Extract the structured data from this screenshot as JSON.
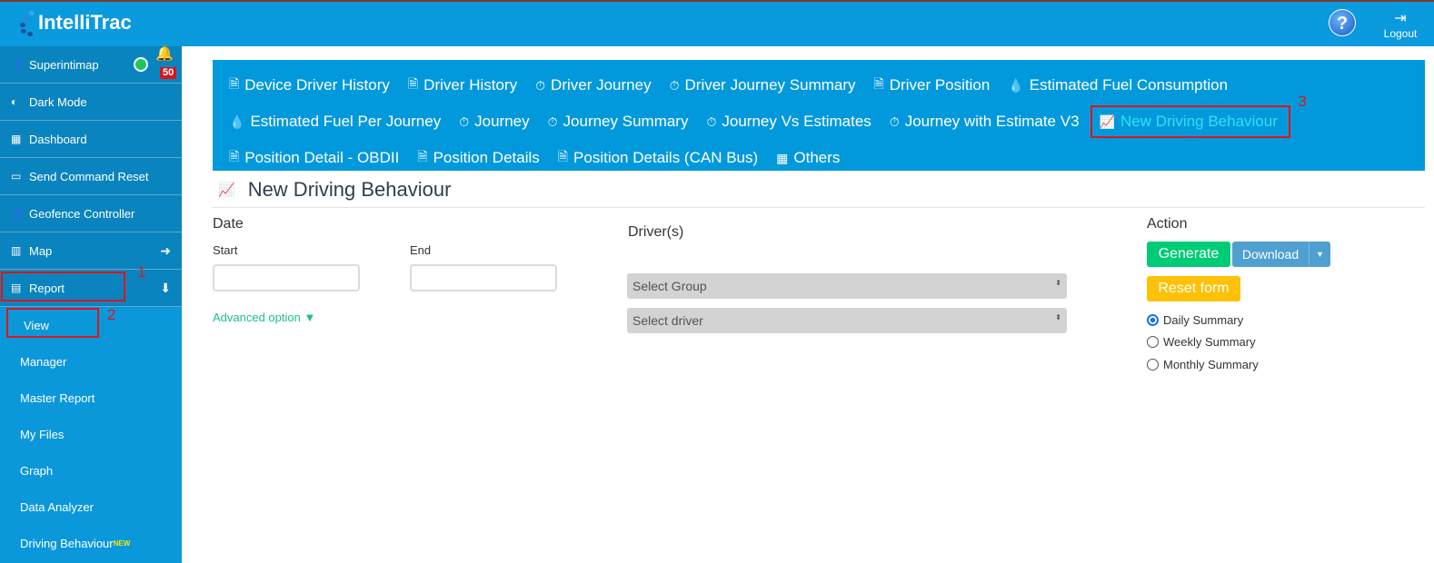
{
  "header": {
    "logo": "IntelliTrac",
    "help_icon": "?",
    "logout": "Logout"
  },
  "sidebar": {
    "user": "Superintimap",
    "notifications": "50",
    "items": [
      {
        "label": "Dark Mode"
      },
      {
        "label": "Dashboard"
      },
      {
        "label": "Send Command Reset"
      },
      {
        "label": "Geofence Controller"
      },
      {
        "label": "Map"
      },
      {
        "label": "Report"
      }
    ],
    "sub_items": [
      {
        "label": "View"
      },
      {
        "label": "Manager"
      },
      {
        "label": "Master Report"
      },
      {
        "label": "My Files"
      },
      {
        "label": "Graph"
      },
      {
        "label": "Data Analyzer"
      },
      {
        "label": "Driving Behaviour"
      }
    ],
    "new_badge": "NEW"
  },
  "report_nav": {
    "rows": [
      [
        "Device Driver History",
        "Driver History",
        "Driver Journey",
        "Driver Journey Summary",
        "Driver Position",
        "Estimated Fuel Consumption"
      ],
      [
        "Estimated Fuel Per Journey",
        "Journey",
        "Journey Summary",
        "Journey Vs Estimates",
        "Journey with Estimate V3",
        "New Driving Behaviour"
      ],
      [
        "Position Detail - OBDII",
        "Position Details",
        "Position Details (CAN Bus)",
        "Others"
      ]
    ],
    "active": "New Driving Behaviour"
  },
  "page": {
    "title": "New Driving Behaviour"
  },
  "form": {
    "date_label": "Date",
    "start_label": "Start",
    "end_label": "End",
    "start_value": "",
    "end_value": "",
    "advanced": "Advanced option ▼",
    "drivers_label": "Driver(s)",
    "group_select": "Select Group",
    "driver_select": "Select driver",
    "action_label": "Action",
    "generate": "Generate",
    "download": "Download",
    "reset": "Reset form",
    "radios": [
      {
        "label": "Daily Summary",
        "checked": true
      },
      {
        "label": "Weekly Summary",
        "checked": false
      },
      {
        "label": "Monthly Summary",
        "checked": false
      }
    ]
  },
  "annotations": [
    "1",
    "2",
    "3"
  ],
  "colors": {
    "header": "#0a9ade",
    "generate": "#00cc77",
    "download": "#4fa0d0",
    "reset": "#ffc107",
    "active_link": "#31e0f0",
    "annotation": "#e0141b"
  }
}
